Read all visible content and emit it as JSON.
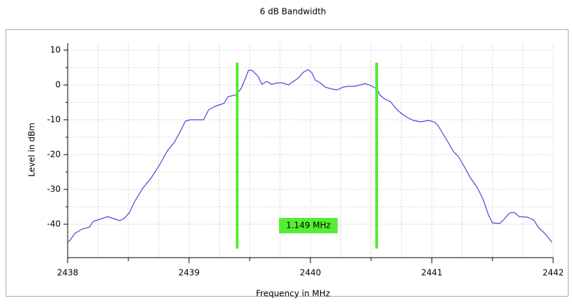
{
  "chart_data": {
    "type": "line",
    "title": "6 dB Bandwidth",
    "x_label": "Frequency in MHz",
    "y_label": "Level in dBm",
    "x": [
      2438.0,
      2438.02,
      2438.06,
      2438.12,
      2438.18,
      2438.21,
      2438.28,
      2438.33,
      2438.38,
      2438.43,
      2438.47,
      2438.51,
      2438.55,
      2438.62,
      2438.69,
      2438.76,
      2438.82,
      2438.88,
      2438.93,
      2438.97,
      2439.01,
      2439.12,
      2439.16,
      2439.21,
      2439.26,
      2439.29,
      2439.32,
      2439.39,
      2439.43,
      2439.47,
      2439.49,
      2439.52,
      2439.57,
      2439.6,
      2439.64,
      2439.68,
      2439.73,
      2439.77,
      2439.82,
      2439.86,
      2439.9,
      2439.94,
      2439.98,
      2440.01,
      2440.04,
      2440.08,
      2440.12,
      2440.18,
      2440.22,
      2440.27,
      2440.32,
      2440.36,
      2440.41,
      2440.45,
      2440.5,
      2440.55,
      2440.57,
      2440.61,
      2440.66,
      2440.71,
      2440.75,
      2440.8,
      2440.85,
      2440.91,
      2440.97,
      2441.02,
      2441.05,
      2441.12,
      2441.18,
      2441.22,
      2441.27,
      2441.32,
      2441.37,
      2441.42,
      2441.47,
      2441.5,
      2441.56,
      2441.6,
      2441.64,
      2441.68,
      2441.72,
      2441.79,
      2441.84,
      2441.88,
      2441.93,
      2441.99
    ],
    "values": [
      -45.2,
      -44.6,
      -42.6,
      -41.4,
      -40.8,
      -39.2,
      -38.4,
      -37.8,
      -38.4,
      -39,
      -38.2,
      -36.6,
      -33.6,
      -29.6,
      -26.6,
      -22.8,
      -19,
      -16.4,
      -13.2,
      -10.4,
      -10,
      -10,
      -7.2,
      -6.2,
      -5.6,
      -5.2,
      -3.4,
      -2.8,
      -1,
      2.4,
      4.2,
      4.2,
      2.4,
      0.2,
      1,
      0.2,
      0.6,
      0.6,
      0,
      1,
      2,
      3.6,
      4.4,
      3.6,
      1.4,
      0.6,
      -0.6,
      -1.2,
      -1.4,
      -0.6,
      -0.4,
      -0.4,
      0,
      0.4,
      -0.2,
      -1.2,
      -2.8,
      -4,
      -4.8,
      -7,
      -8.2,
      -9.4,
      -10.2,
      -10.6,
      -10.2,
      -10.6,
      -11.6,
      -15.6,
      -19.2,
      -20.6,
      -23.6,
      -26.8,
      -29.2,
      -32.6,
      -37.6,
      -39.6,
      -39.8,
      -38.4,
      -36.8,
      -36.6,
      -37.8,
      -38,
      -38.8,
      -41,
      -42.6,
      -45.2
    ],
    "color": "#4444dd",
    "xlim": [
      2438,
      2442
    ],
    "xticks": [
      2438,
      2439,
      2440,
      2441,
      2442
    ],
    "ylim": [
      -49.6,
      12
    ],
    "yticks": [
      10,
      0,
      -10,
      -20,
      -30,
      -40
    ],
    "grid": true,
    "markers": [
      2439.397,
      2440.546
    ],
    "marker_color": "#55ee33",
    "annotation": "1.149 MHz"
  }
}
